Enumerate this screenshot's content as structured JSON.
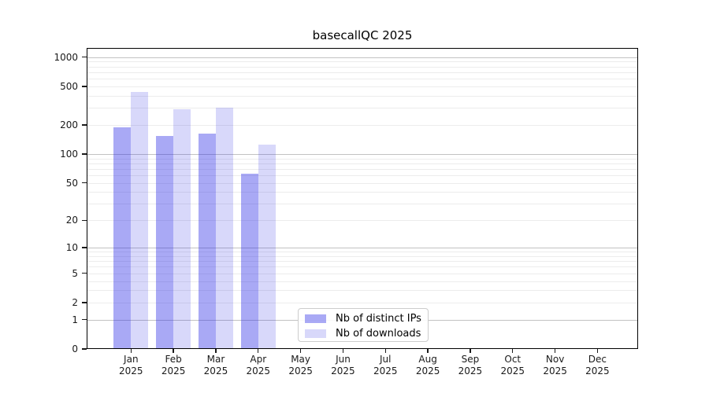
{
  "title": "basecallQC 2025",
  "chart_data": {
    "type": "bar",
    "title": "basecallQC 2025",
    "y_scale": "log1p",
    "grid": true,
    "x_categories": [
      "Jan",
      "Feb",
      "Mar",
      "Apr",
      "May",
      "Jun",
      "Jul",
      "Aug",
      "Sep",
      "Oct",
      "Nov",
      "Dec"
    ],
    "x_year": "2025",
    "series": [
      {
        "name": "Nb of distinct IPs",
        "color": "rgba(40,40,230,0.40)",
        "values": [
          188,
          153,
          164,
          62,
          0,
          0,
          0,
          0,
          0,
          0,
          0,
          0
        ]
      },
      {
        "name": "Nb of downloads",
        "color": "rgba(40,40,230,0.18)",
        "values": [
          435,
          289,
          303,
          126,
          0,
          0,
          0,
          0,
          0,
          0,
          0,
          0
        ]
      }
    ],
    "y_ticks": [
      0,
      1,
      2,
      5,
      10,
      20,
      50,
      100,
      200,
      500,
      1000
    ],
    "y_major_gridlines": [
      1,
      10,
      100,
      1000
    ],
    "y_minor_gridlines": [
      2,
      3,
      4,
      5,
      6,
      7,
      8,
      9,
      20,
      30,
      40,
      50,
      60,
      70,
      80,
      90,
      200,
      300,
      400,
      500,
      600,
      700,
      800,
      900
    ],
    "ylim": [
      0,
      1244
    ],
    "legend_position": "inside-bottom-left-of-center"
  },
  "colors": {
    "major_grid": "#c2c2c2",
    "minor_grid": "#ececec",
    "spine": "#000000",
    "text": "#1a1a1a"
  }
}
